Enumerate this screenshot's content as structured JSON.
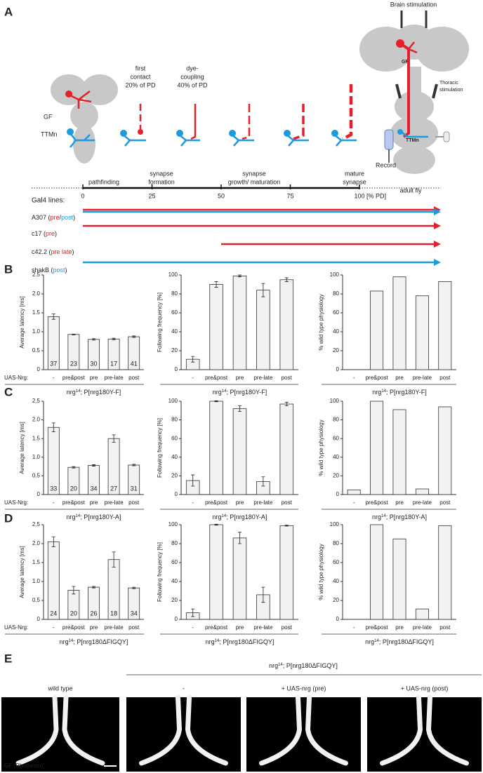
{
  "panel_labels": [
    "A",
    "B",
    "C",
    "D",
    "E"
  ],
  "panel_a": {
    "left_labels": {
      "gf": "GF",
      "ttmn": "TTMn"
    },
    "stages": [
      [
        "first",
        "contact",
        "20% of PD"
      ],
      [
        "dye-",
        "coupling",
        "40% of PD"
      ]
    ],
    "fly": {
      "brain_stim": "Brain stimulation",
      "thoracic_stim": [
        "Thoracic",
        "stimulation"
      ],
      "gf": "GF",
      "ttmn": "TTMn",
      "record": "Record"
    },
    "timeline": {
      "phases": [
        [
          "pathfinding"
        ],
        [
          "synapse",
          "formation"
        ],
        [
          "synapse",
          "growth/ maturation"
        ],
        [
          "mature",
          "synapse"
        ],
        [
          "adult fly"
        ]
      ],
      "xlim": [
        0,
        100
      ],
      "xticks": [
        0,
        25,
        50,
        75,
        100
      ],
      "unit": "[% PD]"
    },
    "gal4": {
      "title": "Gal4 lines:",
      "lines": [
        {
          "parts": [
            {
              "text": "A307 ("
            },
            {
              "text": "pre",
              "color": "#e5202a"
            },
            {
              "text": "/"
            },
            {
              "text": "post",
              "color": "#1d9be0"
            },
            {
              "text": ")"
            }
          ],
          "arrows": [
            {
              "start": 0,
              "color": "#e5202a"
            },
            {
              "start": 0,
              "color": "#1d9be0"
            }
          ]
        },
        {
          "parts": [
            {
              "text": "c17 ("
            },
            {
              "text": "pre",
              "color": "#e5202a"
            },
            {
              "text": ")"
            }
          ],
          "arrows": [
            {
              "start": 0,
              "color": "#e5202a"
            }
          ]
        },
        {
          "parts": [
            {
              "text": "c42.2 ("
            },
            {
              "text": "pre late",
              "color": "#e5202a"
            },
            {
              "text": ")"
            }
          ],
          "arrows": [
            {
              "start": 50,
              "color": "#e5202a"
            }
          ]
        },
        {
          "parts": [
            {
              "text": "shakB ("
            },
            {
              "text": "post",
              "color": "#1d9be0"
            },
            {
              "text": ")"
            }
          ],
          "arrows": [
            {
              "start": 0,
              "color": "#1d9be0"
            }
          ]
        }
      ]
    }
  },
  "uas_label": "UAS-Nrg:",
  "chart_data": [
    {
      "type": "bar",
      "ylabel": "Average latency [ms]",
      "categories": [
        "-",
        "pre&post",
        "pre",
        "pre-late",
        "post"
      ],
      "values": [
        1.4,
        0.93,
        0.8,
        0.81,
        0.87
      ],
      "errors": [
        0.07,
        0.01,
        0.02,
        0.02,
        0.02
      ],
      "n": [
        37,
        23,
        30,
        17,
        41
      ],
      "ylim": [
        0,
        2.5
      ],
      "yticks": [
        0,
        0.5,
        {
          "value": 1,
          "label": "1.0"
        },
        1.5,
        {
          "value": 2,
          "label": "2.0"
        },
        2.5
      ],
      "color": "#f2f2f2",
      "xlabel": {
        "base": "nrg",
        "sup": "14",
        "rest": "; P[nrg180Y-F]"
      }
    },
    {
      "type": "bar",
      "ylabel": "Following frequency [%]",
      "categories": [
        "-",
        "pre&post",
        "pre",
        "pre-late",
        "post"
      ],
      "values": [
        11,
        90,
        99,
        84,
        95
      ],
      "errors": [
        3,
        3,
        1,
        7,
        2
      ],
      "ylim": [
        0,
        100
      ],
      "yticks": [
        0,
        20,
        40,
        60,
        80,
        100
      ],
      "color": "#f2f2f2",
      "xlabel": {
        "base": "nrg",
        "sup": "14",
        "rest": "; P[nrg180Y-F]"
      }
    },
    {
      "type": "bar",
      "ylabel": "% wild type physiology",
      "categories": [
        "-",
        "pre&post",
        "pre",
        "pre-late",
        "post"
      ],
      "values": [
        0,
        83,
        98,
        78,
        93
      ],
      "ylim": [
        0,
        100
      ],
      "yticks": [
        0,
        20,
        40,
        60,
        80,
        100
      ],
      "color": "#f2f2f2",
      "xlabel": {
        "base": "nrg",
        "sup": "14",
        "rest": "; P[nrg180Y-F]"
      }
    },
    {
      "type": "bar",
      "ylabel": "Average latency [ms]",
      "categories": [
        "-",
        "pre&post",
        "pre",
        "pre-late",
        "post"
      ],
      "values": [
        1.8,
        0.73,
        0.78,
        1.5,
        0.79
      ],
      "errors": [
        0.12,
        0.02,
        0.02,
        0.1,
        0.02
      ],
      "n": [
        33,
        20,
        34,
        27,
        31
      ],
      "ylim": [
        0,
        2.5
      ],
      "yticks": [
        0,
        0.5,
        {
          "value": 1,
          "label": "1.0"
        },
        1.5,
        {
          "value": 2,
          "label": "2.0"
        },
        2.5
      ],
      "color": "#f2f2f2",
      "xlabel": {
        "base": "nrg",
        "sup": "14",
        "rest": "; P[nrg180Y-A]"
      }
    },
    {
      "type": "bar",
      "ylabel": "Following frequency [%]",
      "categories": [
        "-",
        "pre&post",
        "pre",
        "pre-late",
        "post"
      ],
      "values": [
        15,
        100,
        92,
        14,
        97
      ],
      "errors": [
        6,
        0.5,
        3,
        5,
        2
      ],
      "ylim": [
        0,
        100
      ],
      "yticks": [
        0,
        20,
        40,
        60,
        80,
        100
      ],
      "color": "#f2f2f2",
      "xlabel": {
        "base": "nrg",
        "sup": "14",
        "rest": "; P[nrg180Y-A]"
      }
    },
    {
      "type": "bar",
      "ylabel": "% wild type physiology",
      "categories": [
        "-",
        "pre&post",
        "pre",
        "pre-late",
        "post"
      ],
      "values": [
        5,
        100,
        91,
        6,
        94
      ],
      "ylim": [
        0,
        100
      ],
      "yticks": [
        0,
        20,
        40,
        60,
        80,
        100
      ],
      "color": "#f2f2f2",
      "xlabel": {
        "base": "nrg",
        "sup": "14",
        "rest": "; P[nrg180Y-A]"
      }
    },
    {
      "type": "bar",
      "ylabel": "Average latency [ms]",
      "categories": [
        "-",
        "pre&post",
        "pre",
        "pre-late",
        "post"
      ],
      "values": [
        2.05,
        0.77,
        0.85,
        1.58,
        0.83
      ],
      "errors": [
        0.13,
        0.1,
        0.02,
        0.2,
        0.02
      ],
      "n": [
        24,
        20,
        26,
        18,
        34
      ],
      "ylim": [
        0,
        2.5
      ],
      "yticks": [
        0,
        0.5,
        {
          "value": 1,
          "label": "1.0"
        },
        1.5,
        {
          "value": 2,
          "label": "2.0"
        },
        2.5
      ],
      "color": "#f2f2f2",
      "xlabel": {
        "base": "nrg",
        "sup": "14",
        "rest": "; P[nrg180ΔFIGQY]"
      }
    },
    {
      "type": "bar",
      "ylabel": "Following frequency [%]",
      "categories": [
        "-",
        "pre&post",
        "pre",
        "pre-late",
        "post"
      ],
      "values": [
        7,
        100,
        86,
        26,
        99
      ],
      "errors": [
        4,
        0.5,
        6,
        8,
        0.5
      ],
      "ylim": [
        0,
        100
      ],
      "yticks": [
        0,
        20,
        40,
        60,
        80,
        100
      ],
      "color": "#f2f2f2",
      "xlabel": {
        "base": "nrg",
        "sup": "14",
        "rest": "; P[nrg180ΔFIGQY]"
      }
    },
    {
      "type": "bar",
      "ylabel": "% wild type physiology",
      "categories": [
        "-",
        "pre&post",
        "pre",
        "pre-late",
        "post"
      ],
      "values": [
        0,
        100,
        85,
        11,
        99
      ],
      "ylim": [
        0,
        100
      ],
      "yticks": [
        0,
        20,
        40,
        60,
        80,
        100
      ],
      "color": "#f2f2f2",
      "xlabel": {
        "base": "nrg",
        "sup": "14",
        "rest": "; P[nrg180ΔFIGQY]"
      }
    }
  ],
  "panel_e": {
    "genotype": {
      "base": "nrg",
      "sup": "14",
      "rest": "; P[nrg180ΔFIGQY]"
    },
    "images": [
      "wild type",
      "-",
      "+ UAS-nrg (pre)",
      "+ UAS-nrg (post)"
    ],
    "stain": "GF (Rhodamin)"
  }
}
